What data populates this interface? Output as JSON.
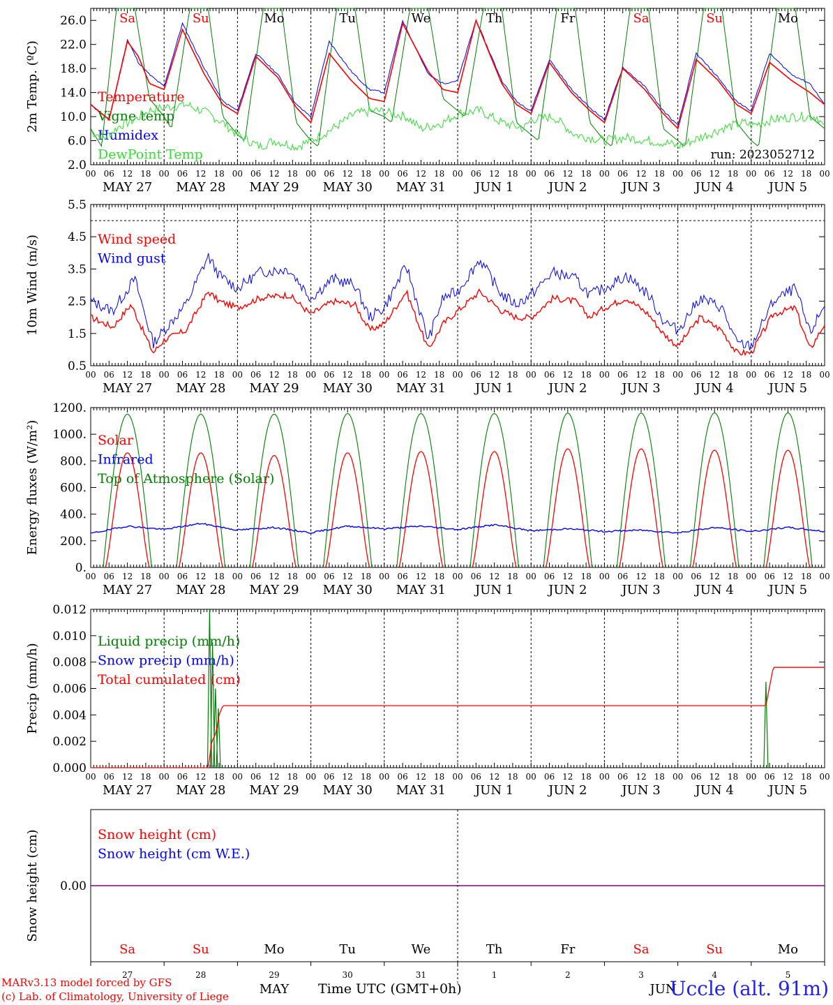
{
  "chart_data": [
    {
      "type": "line",
      "ylabel": "2m Temp. (ºC)",
      "ylim": [
        2,
        28
      ],
      "yticks": [
        "26.0",
        "22.0",
        "18.0",
        "14.0",
        "10.0",
        "6.0",
        "2.0"
      ],
      "legend": [
        "Temperature",
        "Vigne temp",
        "Humidex",
        "DewPoint Temp"
      ],
      "legend_colors": [
        "#ff0000",
        "#008000",
        "#0000ff",
        "#33dd33"
      ],
      "annotation": "run: 2023052712",
      "series": [
        {
          "name": "Temperature",
          "color": "#ff0000",
          "x_days": [
            0,
            0.25,
            0.5,
            0.65,
            0.8,
            1,
            1.25,
            1.55,
            1.8,
            2,
            2.25,
            2.55,
            2.8,
            3,
            3.25,
            3.55,
            3.8,
            4,
            4.25,
            4.6,
            4.8,
            5,
            5.25,
            5.6,
            5.8,
            6,
            6.25,
            6.55,
            6.8,
            7,
            7.25,
            7.55,
            7.8,
            8,
            8.25,
            8.55,
            8.8,
            9,
            9.25,
            9.55,
            9.8,
            10
          ],
          "values": [
            12,
            9.5,
            22.5,
            20,
            15.5,
            14.5,
            24.5,
            17,
            12,
            10.5,
            20,
            16.5,
            11.5,
            9,
            20.5,
            16,
            13,
            12.5,
            25.5,
            17.5,
            14.5,
            14,
            26,
            15.5,
            12,
            10.5,
            19,
            14,
            11,
            9,
            18,
            14.5,
            10.5,
            8,
            19.5,
            16,
            12,
            10.5,
            19,
            16,
            14,
            12
          ]
        },
        {
          "name": "Humidex",
          "color": "#0000ff",
          "x_days": [
            0,
            0.25,
            0.5,
            0.65,
            0.8,
            1,
            1.25,
            1.55,
            1.8,
            2,
            2.25,
            2.55,
            2.8,
            3,
            3.25,
            3.55,
            3.8,
            4,
            4.25,
            4.6,
            4.8,
            5,
            5.25,
            5.6,
            5.8,
            6,
            6.25,
            6.55,
            6.8,
            7,
            7.25,
            7.55,
            7.8,
            8,
            8.25,
            8.55,
            8.8,
            9,
            9.25,
            9.55,
            9.8,
            10
          ],
          "values": [
            12,
            9.5,
            22.8,
            19,
            17,
            15,
            25.5,
            18,
            12.5,
            11,
            20.5,
            17,
            12,
            10,
            22.5,
            17.5,
            14.5,
            14,
            26,
            17,
            15.5,
            16,
            26,
            16,
            12.5,
            11,
            19.5,
            14.5,
            11.5,
            9.5,
            18.2,
            15,
            11,
            8.5,
            20.5,
            16.5,
            12.5,
            11,
            20.5,
            17,
            15.5,
            12
          ]
        },
        {
          "name": "Vigne temp",
          "color": "#008000",
          "x_days": [
            0,
            0.15,
            0.35,
            0.6,
            0.8,
            1,
            1.1,
            1.35,
            1.6,
            1.8,
            2,
            2.1,
            2.35,
            2.6,
            2.8,
            3,
            3.1,
            3.35,
            3.6,
            3.8,
            4,
            4.1,
            4.35,
            4.6,
            4.8,
            5,
            5.1,
            5.35,
            5.6,
            5.8,
            6,
            6.1,
            6.35,
            6.6,
            6.8,
            7,
            7.1,
            7.35,
            7.6,
            7.8,
            8,
            8.1,
            8.35,
            8.6,
            8.8,
            9,
            9.1,
            9.35,
            9.6,
            9.8,
            10
          ],
          "values": [
            8,
            5,
            28,
            28,
            13,
            10,
            8,
            28,
            28,
            10,
            7,
            6,
            28,
            28,
            9,
            6,
            5,
            28,
            28,
            11,
            10,
            9,
            28,
            28,
            13,
            11,
            10,
            28,
            28,
            9,
            7,
            6,
            28,
            28,
            9,
            6,
            5,
            28,
            28,
            8,
            6,
            5,
            28,
            28,
            9,
            6,
            5,
            28,
            28,
            10,
            8
          ]
        },
        {
          "name": "DewPoint Temp",
          "color": "#33dd33",
          "x_days": [
            0,
            0.2,
            0.4,
            0.6,
            0.8,
            1,
            1.3,
            1.6,
            1.8,
            2,
            2.3,
            2.5,
            2.8,
            3,
            3.3,
            3.6,
            3.9,
            4,
            4.3,
            4.5,
            4.8,
            5,
            5.3,
            5.6,
            5.9,
            6,
            6.3,
            6.6,
            6.8,
            7,
            7.3,
            7.6,
            7.9,
            8,
            8.3,
            8.6,
            8.9,
            9,
            9.3,
            9.6,
            9.9,
            10
          ],
          "values": [
            7.5,
            6.5,
            8.5,
            9.5,
            11,
            11.5,
            12,
            10.5,
            9,
            7,
            5,
            6,
            5,
            6,
            8,
            10.5,
            11,
            10.8,
            10,
            8,
            9,
            10.5,
            11,
            9,
            8,
            9.5,
            10,
            7,
            6.5,
            6,
            6.5,
            6,
            5.5,
            5,
            6.5,
            8,
            9,
            8.5,
            9.5,
            10,
            10,
            8
          ]
        }
      ]
    },
    {
      "type": "line",
      "ylabel": "10m Wind (m/s)",
      "ylim": [
        0.5,
        5.5
      ],
      "yticks": [
        "5.5",
        "4.5",
        "3.5",
        "2.5",
        "1.5",
        "0.5"
      ],
      "legend": [
        "Wind speed",
        "Wind gust"
      ],
      "legend_colors": [
        "#ff0000",
        "#0000ff"
      ],
      "series": [
        {
          "name": "Wind speed",
          "color": "#ff0000",
          "x_days": [
            0,
            0.3,
            0.55,
            0.85,
            1,
            1.3,
            1.6,
            1.75,
            2,
            2.3,
            2.7,
            3,
            3.3,
            3.6,
            3.8,
            4,
            4.3,
            4.6,
            4.8,
            5,
            5.3,
            5.6,
            5.8,
            6,
            6.3,
            6.6,
            6.8,
            7,
            7.3,
            7.6,
            7.8,
            8,
            8.3,
            8.6,
            8.8,
            9,
            9.3,
            9.6,
            9.8,
            10
          ],
          "values": [
            2.0,
            1.7,
            2.4,
            0.9,
            1.3,
            1.6,
            2.8,
            2.5,
            2.3,
            2.6,
            2.7,
            2.1,
            2.5,
            2.4,
            1.6,
            1.8,
            2.8,
            1.0,
            1.8,
            2.2,
            2.8,
            2.2,
            2.0,
            2.0,
            2.6,
            2.5,
            2.0,
            2.3,
            2.6,
            2.1,
            1.5,
            1.1,
            2.0,
            1.6,
            0.9,
            0.9,
            2.1,
            2.3,
            1.0,
            1.8
          ]
        },
        {
          "name": "Wind gust",
          "color": "#0000ff",
          "x_days": [
            0,
            0.3,
            0.6,
            0.85,
            1,
            1.3,
            1.6,
            1.75,
            2,
            2.3,
            2.7,
            3,
            3.3,
            3.6,
            3.8,
            4,
            4.3,
            4.6,
            4.8,
            5,
            5.3,
            5.6,
            5.8,
            6,
            6.3,
            6.6,
            6.8,
            7,
            7.3,
            7.6,
            7.8,
            8,
            8.3,
            8.6,
            8.8,
            9,
            9.3,
            9.6,
            9.8,
            10
          ],
          "values": [
            2.5,
            2.2,
            3.2,
            1.2,
            1.6,
            2.4,
            3.9,
            3.3,
            2.9,
            3.4,
            3.5,
            2.6,
            3.2,
            3.0,
            2.0,
            2.3,
            3.6,
            1.3,
            2.6,
            2.8,
            3.8,
            2.7,
            2.4,
            2.7,
            3.4,
            3.2,
            2.7,
            2.9,
            3.3,
            2.7,
            1.9,
            1.6,
            2.6,
            2.3,
            1.2,
            1.1,
            2.5,
            2.9,
            1.5,
            2.4
          ]
        }
      ]
    },
    {
      "type": "line",
      "ylabel": "Energy fluxes (W/m²)",
      "ylim": [
        0,
        1200
      ],
      "yticks": [
        "1200.",
        "1000.",
        "800.",
        "600.",
        "400.",
        "200.",
        "0."
      ],
      "legend": [
        "Solar",
        "Infrared",
        "Top of Atmosphere (Solar)"
      ],
      "legend_colors": [
        "#ff0000",
        "#0000ff",
        "#008000"
      ],
      "toa_peaks": [
        1150,
        1150,
        1150,
        1155,
        1155,
        1155,
        1158,
        1158,
        1160,
        1160
      ],
      "solar_peaks": [
        860,
        860,
        840,
        860,
        870,
        870,
        890,
        890,
        880,
        880
      ],
      "series": [
        {
          "name": "Infrared",
          "color": "#0000ff",
          "x_days": [
            0,
            0.5,
            1,
            1.5,
            2,
            2.5,
            3,
            3.5,
            4,
            4.5,
            5,
            5.5,
            6,
            6.5,
            7,
            7.5,
            8,
            8.5,
            9,
            9.5,
            10
          ],
          "values": [
            255,
            310,
            285,
            330,
            280,
            300,
            260,
            310,
            290,
            310,
            285,
            320,
            275,
            290,
            270,
            280,
            260,
            300,
            270,
            300,
            270
          ]
        }
      ]
    },
    {
      "type": "line",
      "ylabel": "Precip (mm/h)",
      "ylim": [
        0,
        0.012
      ],
      "yticks": [
        "0.012",
        "0.010",
        "0.008",
        "0.006",
        "0.004",
        "0.002",
        "0.000"
      ],
      "legend": [
        "Liquid precip (mm/h)",
        "Snow precip (mm/h)",
        "Total cumulated (cm)"
      ],
      "legend_colors": [
        "#008000",
        "#0000ff",
        "#ff0000"
      ],
      "series": [
        {
          "name": "Total cumulated (cm)",
          "color": "#ff0000",
          "x_days": [
            0,
            1.6,
            1.65,
            1.7,
            1.75,
            1.8,
            2,
            9.2,
            9.3,
            10
          ],
          "values": [
            0,
            0,
            0.002,
            0.0025,
            0.004,
            0.0047,
            0.0047,
            0.0047,
            0.0076,
            0.0076
          ]
        }
      ]
    },
    {
      "type": "line",
      "ylabel": "Snow height (cm)",
      "ylim": [
        -1,
        1
      ],
      "yticks": [
        "0.00"
      ],
      "legend": [
        "Snow height (cm)",
        "Snow height (cm W.E.)"
      ],
      "legend_colors": [
        "#ff0000",
        "#0000ff"
      ],
      "series": [
        {
          "name": "Snow height (cm)",
          "color": "#800080",
          "x_days": [
            0,
            10
          ],
          "values": [
            0,
            0
          ]
        }
      ]
    }
  ],
  "weekdays": [
    "Sa",
    "Su",
    "Mo",
    "Tu",
    "We",
    "Th",
    "Fr",
    "Sa",
    "Su",
    "Mo"
  ],
  "weekday_colors": [
    "#ff0000",
    "#ff0000",
    "#000000",
    "#000000",
    "#000000",
    "#000000",
    "#000000",
    "#ff0000",
    "#ff0000",
    "#000000"
  ],
  "date_labels": [
    "MAY 27",
    "MAY 28",
    "MAY 29",
    "MAY 30",
    "MAY 31",
    "JUN  1",
    "JUN  2",
    "JUN  3",
    "JUN  4",
    "JUN  5"
  ],
  "hour_ticks": [
    "00",
    "06",
    "12",
    "18"
  ],
  "bottom_day_numbers": [
    "27",
    "28",
    "29",
    "30",
    "31",
    "1",
    "2",
    "3",
    "4",
    "5"
  ],
  "footer": {
    "month_may": "MAY",
    "month_jun": "JUN",
    "time_axis": "Time UTC (GMT+0h)",
    "credit_line1": "MARv3.13 model forced by GFS",
    "credit_line2": "(c) Lab. of Climatology, University of Liege",
    "station": "Uccle (alt. 91m)"
  }
}
